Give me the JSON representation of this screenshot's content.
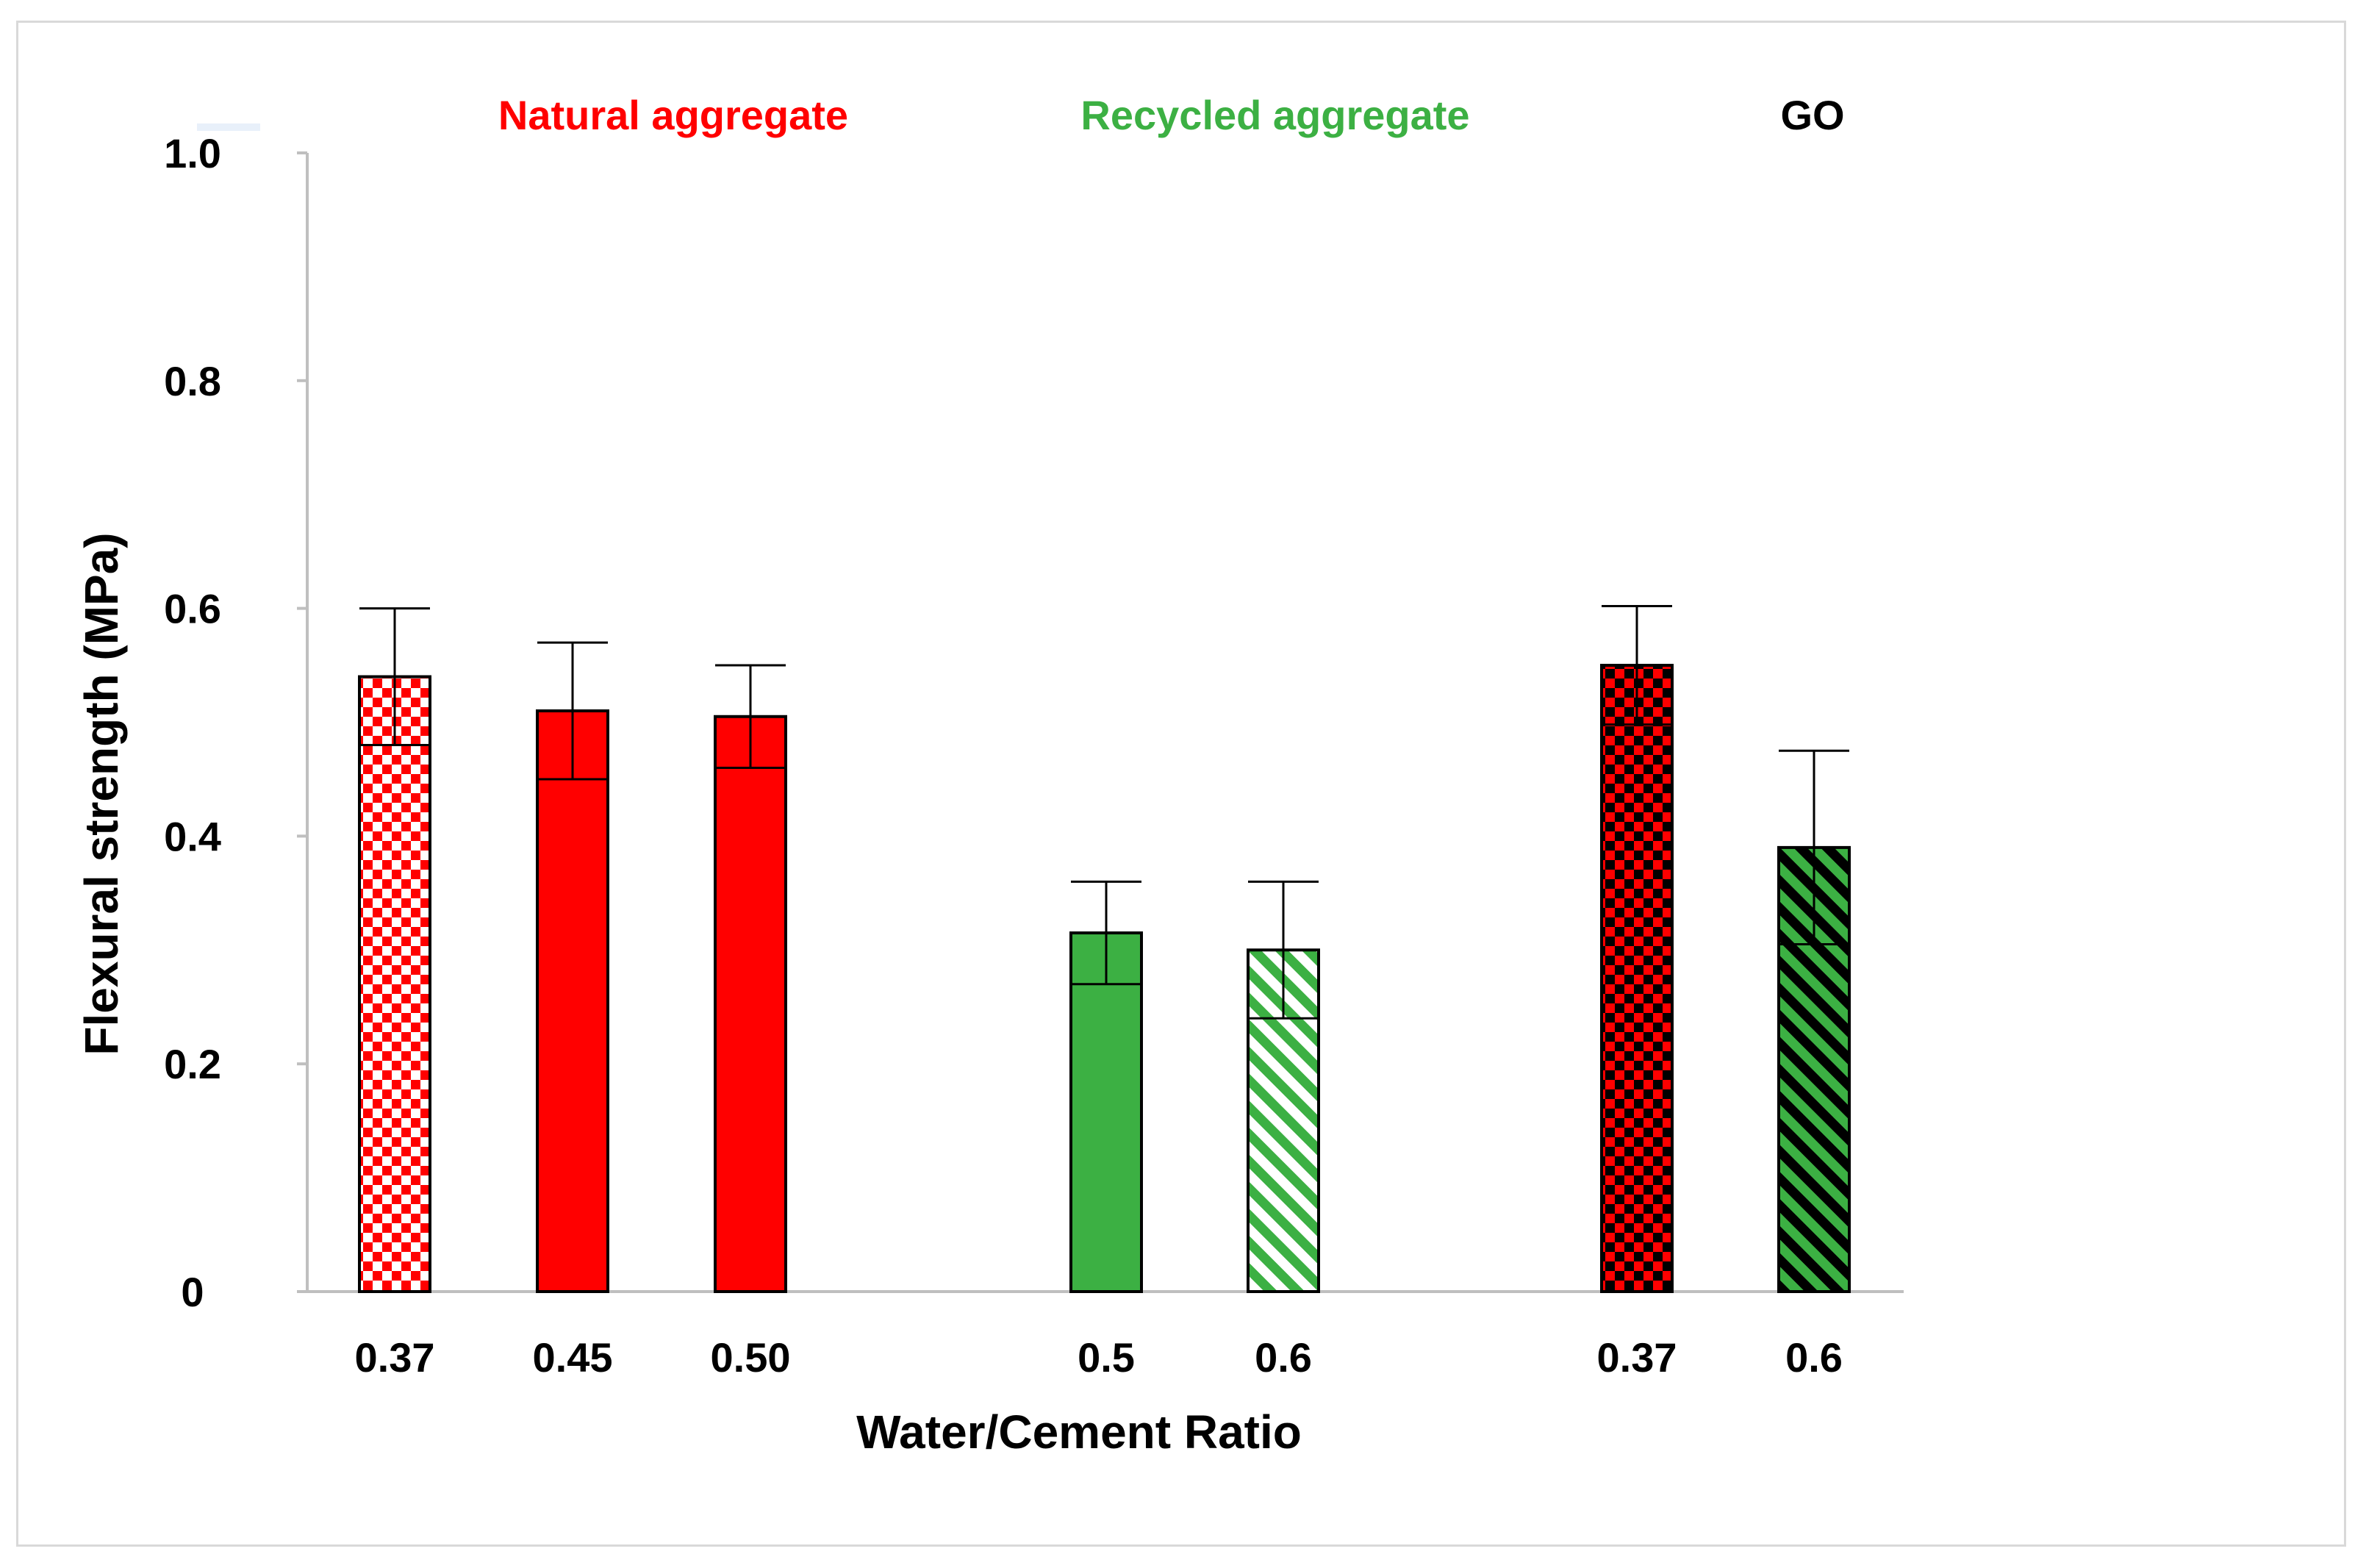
{
  "chart_data": {
    "type": "bar",
    "title": "",
    "xlabel": "Water/Cement Ratio",
    "ylabel": "Flexural strength (MPa)",
    "ylim": [
      0,
      1.0
    ],
    "yticks": [
      0,
      0.2,
      0.4,
      0.6,
      0.8,
      1.0
    ],
    "ytick_labels": [
      "0",
      "0.2",
      "0.4",
      "0.6",
      "0.8",
      "1.0"
    ],
    "grid": false,
    "groups": [
      {
        "name": "Natural aggregate",
        "color": "#ff0000"
      },
      {
        "name": "Recycled aggregate",
        "color": "#3cb043"
      },
      {
        "name": "GO",
        "color": "#000000"
      }
    ],
    "categories": [
      "0.37",
      "0.45",
      "0.50",
      "0.5",
      "0.6",
      "0.37",
      "0.6"
    ],
    "values": [
      0.54,
      0.51,
      0.505,
      0.315,
      0.3,
      0.55,
      0.39
    ],
    "errors": [
      0.06,
      0.06,
      0.045,
      0.045,
      0.06,
      0.052,
      0.085
    ],
    "bar_styles": [
      {
        "pattern": "checker",
        "fg": "#ff0000",
        "bg": "#ffffff"
      },
      {
        "pattern": "solid",
        "fg": "#ff0000",
        "bg": "#ff0000"
      },
      {
        "pattern": "solid",
        "fg": "#ff0000",
        "bg": "#ff0000"
      },
      {
        "pattern": "solid",
        "fg": "#3cb043",
        "bg": "#3cb043"
      },
      {
        "pattern": "diagonal",
        "fg": "#3cb043",
        "bg": "#ffffff"
      },
      {
        "pattern": "checker",
        "fg": "#000000",
        "bg": "#ff0000"
      },
      {
        "pattern": "diagonal",
        "fg": "#000000",
        "bg": "#3cb043"
      }
    ]
  }
}
